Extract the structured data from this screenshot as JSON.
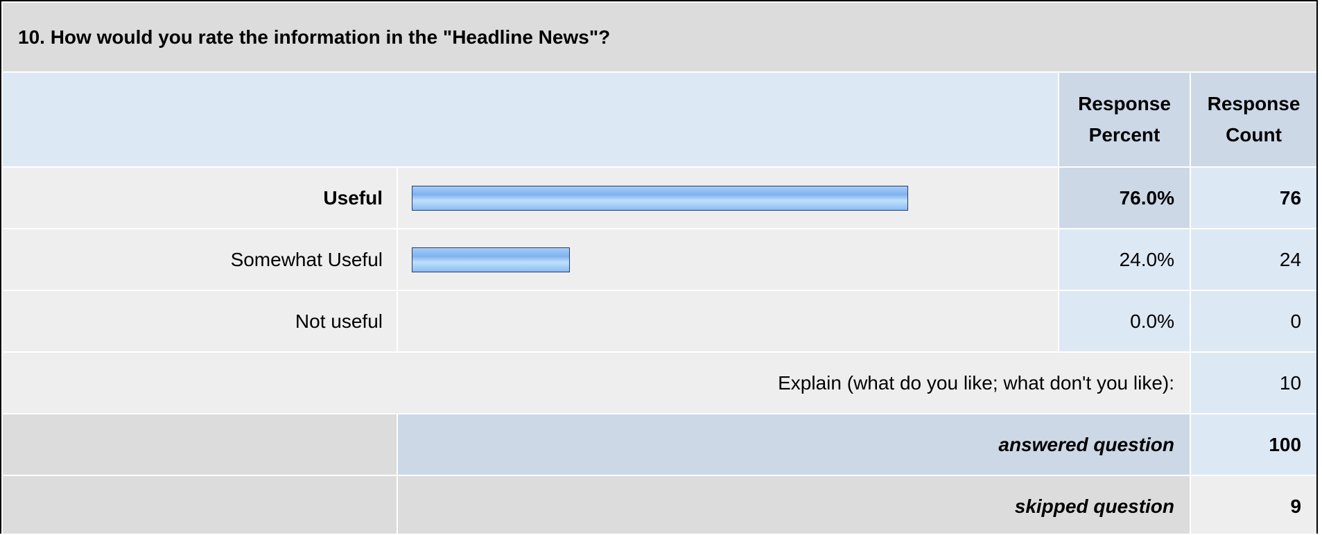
{
  "question": {
    "title": "10. How would you rate the information in the \"Headline News\"?"
  },
  "headers": {
    "response_percent": "Response Percent",
    "response_count": "Response Count"
  },
  "answers": [
    {
      "label": "Useful",
      "percent": "76.0%",
      "percent_value": 76.0,
      "count": "76",
      "highlight": true
    },
    {
      "label": "Somewhat Useful",
      "percent": "24.0%",
      "percent_value": 24.0,
      "count": "24",
      "highlight": false
    },
    {
      "label": "Not useful",
      "percent": "0.0%",
      "percent_value": 0.0,
      "count": "0",
      "highlight": false
    }
  ],
  "explain": {
    "label": "Explain (what do you like; what don't you like):",
    "count": "10"
  },
  "summary": {
    "answered_label": "answered question",
    "answered_count": "100",
    "skipped_label": "skipped question",
    "skipped_count": "9"
  },
  "colors": {
    "title_bg": "#dcdcdc",
    "header_bg": "#ccd8e6",
    "light_blue": "#dde8f5",
    "row_bg": "#eeeeee",
    "bar_border": "#1f3a6e"
  }
}
